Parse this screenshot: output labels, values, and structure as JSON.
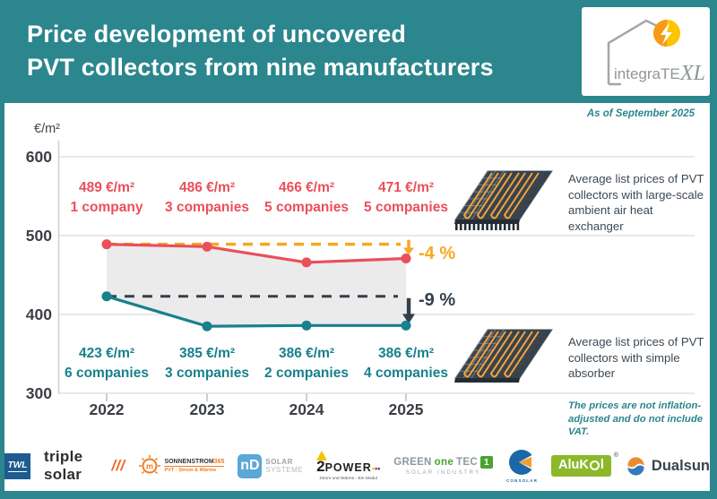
{
  "header": {
    "title_line1": "Price development of uncovered",
    "title_line2": "PVT collectors from nine manufacturers",
    "logo": {
      "name": "integraTE",
      "suffix": "XL"
    }
  },
  "as_of": "As of September 2025",
  "axis": {
    "unit": "€/m²",
    "yticks": [
      "600",
      "500",
      "400",
      "300"
    ],
    "xticks": [
      "2022",
      "2023",
      "2024",
      "2025"
    ]
  },
  "chart_data": {
    "type": "line",
    "title": "Price development of uncovered PVT collectors from nine manufacturers",
    "x": [
      "2022",
      "2023",
      "2024",
      "2025"
    ],
    "ylabel": "€/m²",
    "ylim": [
      300,
      620
    ],
    "grid": true,
    "series": [
      {
        "name": "Average list prices of PVT collectors with large-scale ambient air heat exchanger",
        "color": "#ea4f5a",
        "values": [
          489,
          486,
          466,
          471
        ],
        "companies": [
          1,
          3,
          5,
          5
        ],
        "change_annotation": {
          "text": "-4 %",
          "color": "#f6a821"
        }
      },
      {
        "name": "Average list prices of PVT collectors with simple absorber",
        "color": "#17818c",
        "values": [
          423,
          385,
          386,
          386
        ],
        "companies": [
          6,
          3,
          2,
          4
        ],
        "change_annotation": {
          "text": "-9 %",
          "color": "#333f4b"
        }
      }
    ]
  },
  "point_labels": {
    "red": [
      {
        "price": "489 €/m²",
        "count": "1 company"
      },
      {
        "price": "486 €/m²",
        "count": "3 companies"
      },
      {
        "price": "466 €/m²",
        "count": "5 companies"
      },
      {
        "price": "471 €/m²",
        "count": "5 companies"
      }
    ],
    "teal": [
      {
        "price": "423 €/m²",
        "count": "6 companies"
      },
      {
        "price": "385 €/m²",
        "count": "3 companies"
      },
      {
        "price": "386 €/m²",
        "count": "2 companies"
      },
      {
        "price": "386 €/m²",
        "count": "4 companies"
      }
    ]
  },
  "annotations": {
    "pct_top": "-4 %",
    "pct_bottom": "-9 %"
  },
  "legend": {
    "panel_top_caption": "Average list prices of PVT collectors with large-scale ambient air heat exchanger",
    "panel_bottom_caption": "Average list prices of PVT collectors with simple absorber"
  },
  "note": "The prices are not inflation-adjusted and do not include VAT.",
  "colors": {
    "teal": "#2b868d",
    "red": "#ea4f5a",
    "line_teal": "#17818c",
    "orange": "#f6a821",
    "dark": "#333f4b"
  },
  "footer": {
    "logos": {
      "twl": {
        "text": "TWL"
      },
      "triple_solar": {
        "text": "triple solar",
        "slashes": "///"
      },
      "sonnenstrom": {
        "brand": "SONNENSTROM",
        "brand_accent": "365",
        "tagline": "PVT · Strom & Wärme",
        "mark": "m"
      },
      "nd": {
        "mark": "nD",
        "line1": "SOLAR",
        "line2": "SYSTEME"
      },
      "twopower": {
        "num": "2",
        "word": "POWER",
        "tagline": "Strom und Wärme - Ein Modul"
      },
      "greenonetec": {
        "part1": "GREEN",
        "part2": "one",
        "part3": "TEC",
        "badge": "1",
        "tagline": "SOLAR INDUSTRY"
      },
      "consolar": {
        "text": "CONSOLAR"
      },
      "alukol": {
        "part1": "AluK",
        "part2": "o",
        "part3": "l",
        "reg": "®"
      },
      "dualsun": {
        "text": "Dualsun"
      }
    }
  }
}
